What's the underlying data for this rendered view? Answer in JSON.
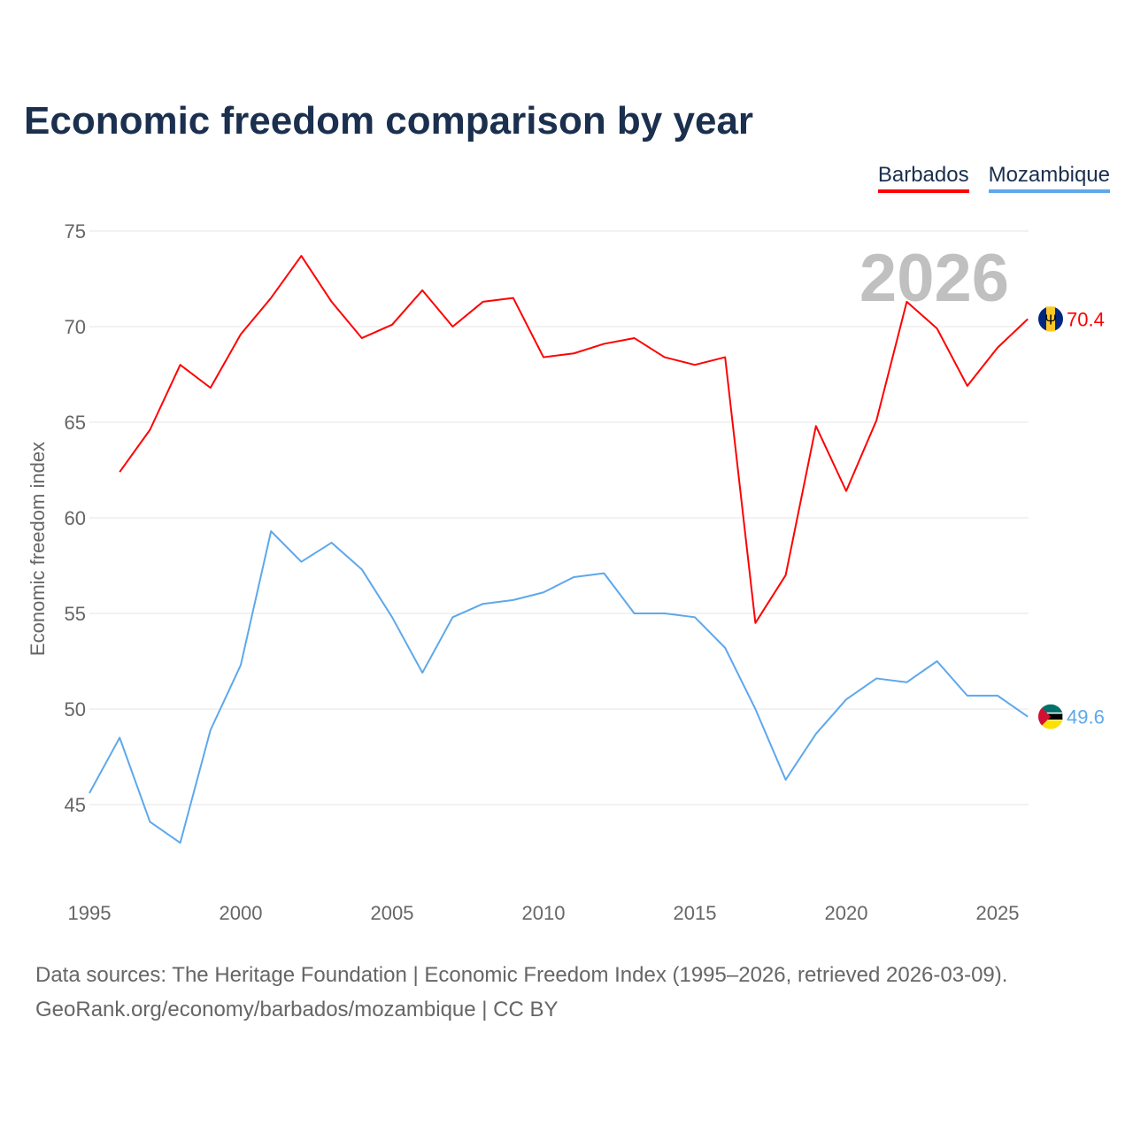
{
  "chart_data": {
    "type": "line",
    "title": "Economic freedom comparison by year",
    "xlabel": "",
    "ylabel": "Economic freedom index",
    "xlim": [
      1995,
      2026
    ],
    "ylim": [
      41,
      75
    ],
    "y_ticks": [
      "45",
      "50",
      "55",
      "60",
      "65",
      "70",
      "75"
    ],
    "x_ticks": [
      "1995",
      "2000",
      "2005",
      "2010",
      "2015",
      "2020",
      "2025"
    ],
    "grid": true,
    "legend_position": "top-right",
    "year_watermark": "2026",
    "series": [
      {
        "name": "Barbados",
        "color": "#ff0000",
        "end_label": "70.4",
        "x": [
          1996,
          1997,
          1998,
          1999,
          2000,
          2001,
          2002,
          2003,
          2004,
          2005,
          2006,
          2007,
          2008,
          2009,
          2010,
          2011,
          2012,
          2013,
          2014,
          2015,
          2016,
          2017,
          2018,
          2019,
          2020,
          2021,
          2022,
          2023,
          2024,
          2025,
          2026
        ],
        "values": [
          62.4,
          64.6,
          68.0,
          66.8,
          69.6,
          71.5,
          73.7,
          71.3,
          69.4,
          70.1,
          71.9,
          70.0,
          71.3,
          71.5,
          68.4,
          68.6,
          69.1,
          69.4,
          68.4,
          68.0,
          68.4,
          54.5,
          57.0,
          64.8,
          61.4,
          65.1,
          71.3,
          69.9,
          66.9,
          68.9,
          70.4
        ]
      },
      {
        "name": "Mozambique",
        "color": "#5da8ec",
        "end_label": "49.6",
        "x": [
          1995,
          1996,
          1997,
          1998,
          1999,
          2000,
          2001,
          2002,
          2003,
          2004,
          2005,
          2006,
          2007,
          2008,
          2009,
          2010,
          2011,
          2012,
          2013,
          2014,
          2015,
          2016,
          2017,
          2018,
          2019,
          2020,
          2021,
          2022,
          2023,
          2024,
          2025,
          2026
        ],
        "values": [
          45.6,
          48.5,
          44.1,
          43.0,
          48.9,
          52.3,
          59.3,
          57.7,
          58.7,
          57.3,
          54.8,
          51.9,
          54.8,
          55.5,
          55.7,
          56.1,
          56.9,
          57.1,
          55.0,
          55.0,
          54.8,
          53.2,
          50.0,
          46.3,
          48.7,
          50.5,
          51.6,
          51.4,
          52.5,
          50.7,
          50.7,
          49.6
        ]
      }
    ]
  },
  "footer": {
    "line1": "Data sources: The Heritage Foundation | Economic Freedom Index (1995–2026, retrieved 2026-03-09).",
    "line2": "GeoRank.org/economy/barbados/mozambique | CC BY"
  }
}
